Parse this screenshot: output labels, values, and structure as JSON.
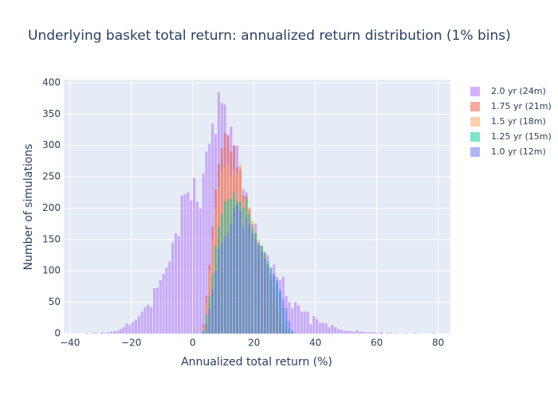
{
  "chart_data": {
    "type": "histogram",
    "title": "Underlying basket total return: annualized return distribution (1% bins)",
    "x_label": "Annualized total return (%)",
    "y_label": "Number of simulations",
    "xlim": [
      -42,
      84
    ],
    "xticks": [
      {
        "value": -40,
        "label": "−40"
      },
      {
        "value": -20,
        "label": "−20"
      },
      0,
      20,
      40,
      60,
      80
    ],
    "ylim": [
      0,
      405
    ],
    "yticks": [
      0,
      50,
      100,
      150,
      200,
      250,
      300,
      350,
      400
    ],
    "grid": true,
    "opacity": 0.5,
    "legend": "right",
    "series": [
      {
        "name": "2.0 yr (24m)",
        "color": "#ab63fa",
        "bins": [
          -36,
          -35,
          -34,
          -33,
          -32,
          -31,
          -30,
          -29,
          -28,
          -27,
          -26,
          -25,
          -24,
          -23,
          -22,
          -21,
          -20,
          -19,
          -18,
          -17,
          -16,
          -15,
          -14,
          -13,
          -12,
          -11,
          -10,
          -9,
          -8,
          -7,
          -6,
          -5,
          -4,
          -3,
          -2,
          -1,
          0,
          1,
          2,
          3,
          4,
          5,
          6,
          7,
          8,
          9,
          10,
          11,
          12,
          13,
          14,
          15,
          16,
          17,
          18,
          19,
          20,
          21,
          22,
          23,
          24,
          25,
          26,
          27,
          28,
          29,
          30,
          31,
          32,
          33,
          34,
          35,
          36,
          37,
          38,
          39,
          40,
          41,
          42,
          43,
          44,
          45,
          46,
          47,
          48,
          49,
          50,
          51,
          52,
          53,
          54,
          55,
          56,
          57,
          58,
          59,
          60,
          61,
          62,
          63,
          64,
          65,
          66,
          67,
          68,
          69,
          70,
          71,
          72,
          73,
          74,
          75,
          76,
          77,
          78,
          79,
          80,
          81,
          82
        ],
        "values": [
          0,
          1,
          0,
          1,
          1,
          0,
          2,
          1,
          2,
          3,
          4,
          4,
          7,
          10,
          16,
          14,
          18,
          22,
          28,
          35,
          42,
          46,
          42,
          72,
          73,
          85,
          95,
          105,
          115,
          145,
          160,
          155,
          220,
          222,
          225,
          212,
          248,
          210,
          200,
          255,
          290,
          303,
          335,
          318,
          385,
          368,
          365,
          318,
          330,
          300,
          300,
          265,
          230,
          225,
          195,
          160,
          175,
          140,
          140,
          130,
          125,
          105,
          110,
          90,
          85,
          90,
          60,
          50,
          40,
          50,
          45,
          35,
          35,
          35,
          15,
          28,
          23,
          17,
          17,
          16,
          10,
          14,
          10,
          7,
          6,
          4,
          4,
          4,
          3,
          5,
          3,
          3,
          2,
          2,
          2,
          2,
          1,
          2,
          0,
          1,
          1,
          0,
          1,
          0,
          0,
          1,
          0,
          0,
          1,
          0,
          0,
          0,
          0,
          0,
          1,
          0,
          0,
          0
        ]
      },
      {
        "name": "1.75 yr (21m)",
        "color": "#EF553B",
        "bins": [
          3,
          4,
          5,
          6,
          7,
          8,
          9,
          10,
          11,
          12,
          13,
          14,
          15,
          16,
          17,
          18,
          19,
          20,
          21,
          22,
          23,
          24,
          25,
          26,
          27,
          28,
          29,
          30,
          31,
          32,
          33
        ],
        "values": [
          15,
          60,
          110,
          170,
          230,
          270,
          295,
          320,
          315,
          290,
          300,
          265,
          260,
          220,
          220,
          200,
          175,
          160,
          145,
          140,
          125,
          105,
          85,
          60,
          40,
          20,
          8,
          2,
          0,
          0
        ]
      },
      {
        "name": "1.5 yr (18m)",
        "color": "#FFA15A",
        "bins": [
          3,
          4,
          5,
          6,
          7,
          8,
          9,
          10,
          11,
          12,
          13,
          14,
          15,
          16,
          17,
          18,
          19,
          20,
          21,
          22,
          23,
          24,
          25,
          26,
          27,
          28,
          29,
          30,
          31,
          32,
          33
        ],
        "values": [
          10,
          50,
          100,
          150,
          200,
          235,
          260,
          265,
          270,
          250,
          260,
          255,
          270,
          215,
          215,
          200,
          180,
          165,
          150,
          140,
          125,
          110,
          90,
          75,
          55,
          35,
          15,
          5,
          2,
          0
        ]
      },
      {
        "name": "1.25 yr (15m)",
        "color": "#00cc96",
        "bins": [
          3,
          4,
          5,
          6,
          7,
          8,
          9,
          10,
          11,
          12,
          13,
          14,
          15,
          16,
          17,
          18,
          19,
          20,
          21,
          22,
          23,
          24,
          25,
          26,
          27,
          28,
          29,
          30,
          31,
          32,
          33
        ],
        "values": [
          5,
          30,
          60,
          95,
          140,
          170,
          190,
          210,
          215,
          215,
          225,
          210,
          210,
          200,
          215,
          190,
          170,
          160,
          145,
          140,
          130,
          115,
          105,
          90,
          80,
          65,
          40,
          20,
          8,
          2
        ]
      },
      {
        "name": "1.0 yr (12m)",
        "color": "#636efa",
        "bins": [
          3,
          4,
          5,
          6,
          7,
          8,
          9,
          10,
          11,
          12,
          13,
          14,
          15,
          16,
          17,
          18,
          19,
          20,
          21,
          22,
          23,
          24,
          25,
          26,
          27,
          28,
          29,
          30,
          31,
          32,
          33
        ],
        "values": [
          2,
          15,
          40,
          70,
          100,
          135,
          145,
          155,
          160,
          175,
          200,
          205,
          195,
          170,
          185,
          175,
          160,
          150,
          140,
          130,
          120,
          110,
          95,
          95,
          85,
          70,
          55,
          40,
          20,
          5
        ]
      }
    ]
  }
}
